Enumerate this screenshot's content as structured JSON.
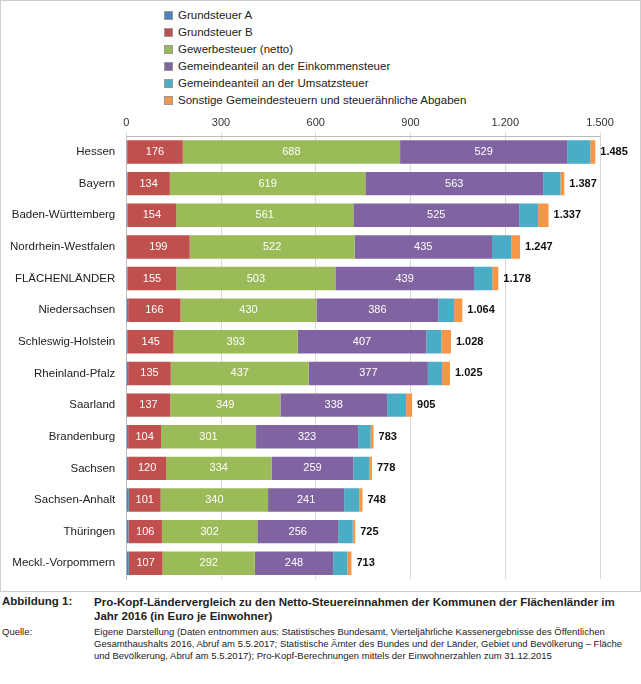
{
  "chart_data": {
    "type": "bar",
    "orientation": "horizontal",
    "stacked": true,
    "grid": true,
    "legend": "top-left",
    "categories": [
      "Hessen",
      "Bayern",
      "Baden-Württemberg",
      "Nordrhein-Westfalen",
      "FLÄCHENLÄNDER",
      "Niedersachsen",
      "Schleswig-Holstein",
      "Rheinland-Pfalz",
      "Saarland",
      "Brandenburg",
      "Sachsen",
      "Sachsen-Anhalt",
      "Thüringen",
      "Meckl.-Vorpommern"
    ],
    "series": [
      {
        "name": "Grundsteuer A",
        "color": "#4f81bd",
        "values": [
          3,
          4,
          4,
          2,
          4,
          6,
          5,
          6,
          2,
          6,
          6,
          8,
          7,
          8
        ]
      },
      {
        "name": "Grundsteuer B",
        "color": "#c0504d",
        "data_labels": true,
        "values": [
          176,
          134,
          154,
          199,
          155,
          166,
          145,
          135,
          137,
          104,
          120,
          101,
          106,
          107
        ]
      },
      {
        "name": "Gewerbesteuer (netto)",
        "color": "#9bbb59",
        "data_labels": true,
        "values": [
          688,
          619,
          561,
          522,
          503,
          430,
          393,
          437,
          349,
          301,
          334,
          340,
          302,
          292
        ]
      },
      {
        "name": "Gemeindeanteil an der Einkommensteuer",
        "color": "#8064a2",
        "data_labels": true,
        "values": [
          529,
          563,
          525,
          435,
          439,
          386,
          407,
          377,
          338,
          323,
          259,
          241,
          256,
          248
        ]
      },
      {
        "name": "Gemeindeanteil an der Umsatzsteuer",
        "color": "#4bacc6",
        "values": [
          73,
          55,
          60,
          62,
          58,
          50,
          48,
          45,
          60,
          40,
          50,
          48,
          46,
          45
        ]
      },
      {
        "name": "Sonstige Gemeindesteuern und steuerähnliche Abgaben",
        "color": "#f79646",
        "values": [
          16,
          12,
          33,
          27,
          19,
          26,
          30,
          25,
          19,
          9,
          9,
          10,
          8,
          13
        ]
      }
    ],
    "totals": [
      1485,
      1387,
      1337,
      1247,
      1178,
      1064,
      1028,
      1025,
      905,
      783,
      778,
      748,
      725,
      713
    ],
    "total_labels": [
      "1.485",
      "1.387",
      "1.337",
      "1.247",
      "1.178",
      "1.064",
      "1.028",
      "1.025",
      "905",
      "783",
      "778",
      "748",
      "725",
      "713"
    ],
    "xlim": [
      0,
      1500
    ],
    "xticks": [
      0,
      300,
      600,
      900,
      {
        "value": 1200,
        "label": "1.200"
      },
      {
        "value": 1500,
        "label": "1.500"
      }
    ]
  },
  "caption": {
    "label": "Abbildung 1:",
    "text": "Pro-Kopf-Ländervergleich zu den Netto-Steuereinnahmen der Kommunen der Flächenländer im Jahr 2016 (in Euro je Einwohner)"
  },
  "source": {
    "label": "Quelle:",
    "text": "Eigene Darstellung (Daten entnommen aus: Statistisches Bundesamt, Vierteljährliche Kassenergebnisse des Öffentlichen Gesamthaushalts 2016, Abruf am 5.5.2017; Statistische Ämter des Bundes und der Länder, Gebiet und Bevölkerung – Fläche und Bevölkerung, Abruf am 5.5.2017); Pro-Kopf-Berechnungen mittels der Einwohnerzahlen zum 31.12.2015"
  }
}
